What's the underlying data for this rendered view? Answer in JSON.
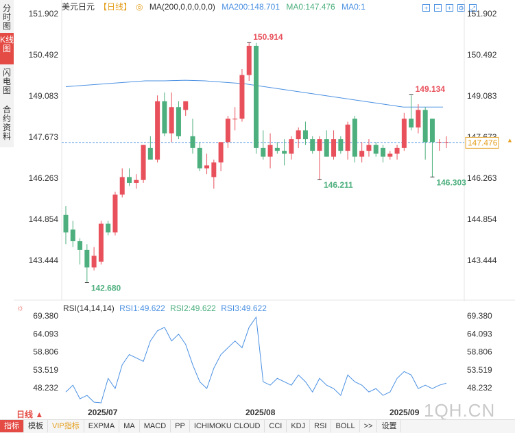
{
  "side_tabs": [
    {
      "label": "分时图",
      "active": false
    },
    {
      "label": "K线图",
      "active": true
    },
    {
      "label": "闪电图",
      "active": false
    },
    {
      "label": "合约资料",
      "active": false
    }
  ],
  "legend": {
    "symbol": "美元日元",
    "period": "【日线】",
    "ma_params": "MA(200,0,0,0,0,0)",
    "ma200": "MA200:148.701",
    "ma0a": "MA0:147.476",
    "ma0b": "MA0:1"
  },
  "toolbar_icons": [
    "expand-icon",
    "zoom-out-icon",
    "zoom-in-icon",
    "settings-icon",
    "fullscreen-icon"
  ],
  "price_axis": {
    "ticks": [
      "151.902",
      "150.492",
      "149.083",
      "147.673",
      "146.263",
      "144.854",
      "143.444"
    ],
    "current_price": "147.476"
  },
  "annotations": {
    "high": "150.914",
    "low": "142.680",
    "high2": "149.134",
    "low2": "146.211",
    "low3": "146.303"
  },
  "rsi": {
    "params": "RSI(14,14,14)",
    "rsi1": "RSI1:49.622",
    "rsi2": "RSI2:49.622",
    "rsi3": "RSI3:49.622",
    "ticks": [
      "69.380",
      "64.093",
      "58.806",
      "53.519",
      "48.232"
    ]
  },
  "date_labels": [
    "2025/07",
    "2025/08",
    "2025/09"
  ],
  "period_select": "日线 ▲",
  "bottom_tabs": [
    {
      "label": "指标",
      "active": true
    },
    {
      "label": "模板",
      "active": false
    },
    {
      "label": "VIP指标",
      "active": false,
      "vip": true
    },
    {
      "label": "EXPMA",
      "active": false
    },
    {
      "label": "MA",
      "active": false
    },
    {
      "label": "MACD",
      "active": false
    },
    {
      "label": "PP",
      "active": false
    },
    {
      "label": "ICHIMOKU CLOUD",
      "active": false
    },
    {
      "label": "CCI",
      "active": false
    },
    {
      "label": "KDJ",
      "active": false
    },
    {
      "label": "RSI",
      "active": false
    },
    {
      "label": "BOLL",
      "active": false
    },
    {
      "label": ">>",
      "active": false
    },
    {
      "label": "设置",
      "active": false
    }
  ],
  "watermark": "1QH.CN",
  "colors": {
    "up": "#e8505b",
    "down": "#4caf7d",
    "ma": "#4a90e2",
    "rsi": "#4a90e2"
  },
  "chart_data": {
    "type": "candlestick",
    "title": "",
    "ylim": [
      142.2,
      152.2
    ],
    "candles": [
      {
        "o": 145.0,
        "h": 145.3,
        "l": 144.0,
        "c": 144.4
      },
      {
        "o": 144.5,
        "h": 144.8,
        "l": 143.9,
        "c": 144.1
      },
      {
        "o": 144.1,
        "h": 144.2,
        "l": 143.3,
        "c": 143.8
      },
      {
        "o": 143.8,
        "h": 144.0,
        "l": 142.7,
        "c": 143.2
      },
      {
        "o": 143.2,
        "h": 143.9,
        "l": 143.1,
        "c": 143.6
      },
      {
        "o": 143.4,
        "h": 144.8,
        "l": 143.3,
        "c": 144.7
      },
      {
        "o": 144.7,
        "h": 144.8,
        "l": 144.3,
        "c": 144.4
      },
      {
        "o": 144.4,
        "h": 145.8,
        "l": 144.3,
        "c": 145.7
      },
      {
        "o": 145.7,
        "h": 146.6,
        "l": 145.6,
        "c": 146.3
      },
      {
        "o": 146.3,
        "h": 146.6,
        "l": 146.0,
        "c": 146.1
      },
      {
        "o": 146.1,
        "h": 146.4,
        "l": 145.9,
        "c": 146.2
      },
      {
        "o": 146.2,
        "h": 147.4,
        "l": 146.1,
        "c": 147.4
      },
      {
        "o": 147.3,
        "h": 147.7,
        "l": 146.9,
        "c": 146.9
      },
      {
        "o": 146.9,
        "h": 149.1,
        "l": 146.8,
        "c": 148.9
      },
      {
        "o": 148.9,
        "h": 149.2,
        "l": 147.7,
        "c": 147.8
      },
      {
        "o": 147.8,
        "h": 149.2,
        "l": 147.5,
        "c": 148.7
      },
      {
        "o": 148.7,
        "h": 148.9,
        "l": 147.6,
        "c": 147.7
      },
      {
        "o": 148.6,
        "h": 148.9,
        "l": 148.4,
        "c": 148.9
      },
      {
        "o": 147.7,
        "h": 148.3,
        "l": 147.1,
        "c": 147.3
      },
      {
        "o": 147.3,
        "h": 147.5,
        "l": 146.5,
        "c": 146.6
      },
      {
        "o": 146.6,
        "h": 147.1,
        "l": 146.4,
        "c": 146.7
      },
      {
        "o": 146.3,
        "h": 146.9,
        "l": 145.9,
        "c": 146.8
      },
      {
        "o": 146.8,
        "h": 147.5,
        "l": 146.5,
        "c": 147.5
      },
      {
        "o": 147.5,
        "h": 148.4,
        "l": 147.3,
        "c": 148.3
      },
      {
        "o": 148.3,
        "h": 148.7,
        "l": 147.9,
        "c": 148.3
      },
      {
        "o": 148.3,
        "h": 150.0,
        "l": 148.2,
        "c": 149.8
      },
      {
        "o": 149.8,
        "h": 150.9,
        "l": 149.6,
        "c": 150.8
      },
      {
        "o": 150.8,
        "h": 150.9,
        "l": 147.1,
        "c": 147.3
      },
      {
        "o": 147.3,
        "h": 147.9,
        "l": 146.9,
        "c": 147.0
      },
      {
        "o": 147.0,
        "h": 147.8,
        "l": 146.6,
        "c": 147.4
      },
      {
        "o": 147.3,
        "h": 147.5,
        "l": 147.1,
        "c": 147.2
      },
      {
        "o": 147.2,
        "h": 147.6,
        "l": 146.7,
        "c": 147.1
      },
      {
        "o": 147.1,
        "h": 147.7,
        "l": 146.9,
        "c": 147.6
      },
      {
        "o": 147.6,
        "h": 148.0,
        "l": 147.3,
        "c": 147.9
      },
      {
        "o": 147.9,
        "h": 148.2,
        "l": 147.4,
        "c": 147.6
      },
      {
        "o": 147.6,
        "h": 147.7,
        "l": 147.1,
        "c": 147.2
      },
      {
        "o": 147.2,
        "h": 147.7,
        "l": 146.2,
        "c": 147.6
      },
      {
        "o": 147.6,
        "h": 147.9,
        "l": 147.0,
        "c": 147.0
      },
      {
        "o": 147.0,
        "h": 147.9,
        "l": 146.9,
        "c": 147.6
      },
      {
        "o": 147.6,
        "h": 147.7,
        "l": 147.1,
        "c": 147.2
      },
      {
        "o": 147.2,
        "h": 148.2,
        "l": 146.9,
        "c": 148.1
      },
      {
        "o": 148.3,
        "h": 148.4,
        "l": 146.8,
        "c": 147.0
      },
      {
        "o": 147.0,
        "h": 147.5,
        "l": 146.8,
        "c": 147.2
      },
      {
        "o": 147.2,
        "h": 147.6,
        "l": 147.0,
        "c": 147.4
      },
      {
        "o": 147.4,
        "h": 147.5,
        "l": 147.0,
        "c": 147.1
      },
      {
        "o": 147.3,
        "h": 147.4,
        "l": 146.8,
        "c": 147.0
      },
      {
        "o": 147.0,
        "h": 147.2,
        "l": 146.9,
        "c": 147.1
      },
      {
        "o": 147.1,
        "h": 147.4,
        "l": 146.9,
        "c": 147.3
      },
      {
        "o": 147.3,
        "h": 148.5,
        "l": 147.2,
        "c": 148.3
      },
      {
        "o": 148.3,
        "h": 149.1,
        "l": 147.9,
        "c": 148.0
      },
      {
        "o": 148.0,
        "h": 148.8,
        "l": 147.8,
        "c": 148.6
      },
      {
        "o": 148.6,
        "h": 148.7,
        "l": 146.9,
        "c": 147.5
      },
      {
        "o": 148.3,
        "h": 148.3,
        "l": 146.3,
        "c": 147.5
      },
      {
        "o": 147.5,
        "h": 147.6,
        "l": 147.2,
        "c": 147.5
      },
      {
        "o": 147.5,
        "h": 147.7,
        "l": 147.3,
        "c": 147.5
      }
    ],
    "ma200": [
      149.4,
      149.45,
      149.5,
      149.55,
      149.6,
      149.6,
      149.62,
      149.6,
      149.55,
      149.5,
      149.4,
      149.3,
      149.2,
      149.1,
      149.0,
      148.9,
      148.8,
      148.7,
      148.7,
      148.7
    ],
    "rsi": [
      47,
      49,
      45,
      46,
      44,
      43,
      51,
      48,
      55,
      58,
      57,
      56,
      62,
      65,
      66,
      62,
      64,
      61,
      55,
      50,
      48,
      54,
      58,
      60,
      62,
      60,
      66,
      69,
      50,
      49,
      51,
      50,
      49,
      52,
      50,
      47,
      51,
      49,
      48,
      46,
      52,
      50,
      49,
      47,
      48,
      46,
      47,
      51,
      53,
      52,
      48,
      49,
      48,
      49,
      49.6
    ],
    "rsi_ylim": [
      44,
      72
    ]
  }
}
